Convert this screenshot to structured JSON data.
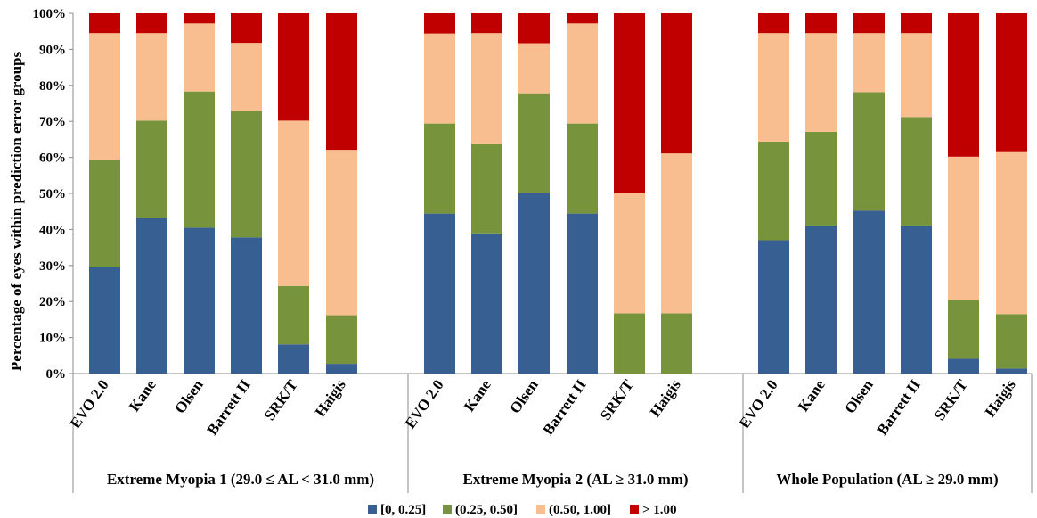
{
  "chart_data": {
    "type": "bar",
    "stacked": true,
    "ylabel": "Percentage of eyes within prediction error groups",
    "ylim": [
      0,
      100
    ],
    "yticks": [
      "0%",
      "10%",
      "20%",
      "30%",
      "40%",
      "50%",
      "60%",
      "70%",
      "80%",
      "90%",
      "100%"
    ],
    "grid": false,
    "legend_position": "bottom",
    "colors": {
      "[0, 0.25]": "#375f92",
      "(0.25, 0.50]": "#77933c",
      "(0.50, 1.00]": "#f9be8f",
      "> 1.00": "#c00000"
    },
    "groups": [
      {
        "label": "Extreme Myopia 1 (29.0 ≤ AL < 31.0 mm)",
        "categories": [
          "EVO 2.0",
          "Kane",
          "Olsen",
          "Barrett II",
          "SRK/T",
          "Haigis"
        ],
        "series": [
          {
            "name": "[0, 0.25]",
            "values": [
              29.7,
              43.2,
              40.5,
              37.8,
              8.1,
              2.7
            ]
          },
          {
            "name": "(0.25, 0.50]",
            "values": [
              29.7,
              27.0,
              37.8,
              35.1,
              16.2,
              13.5
            ]
          },
          {
            "name": "(0.50, 1.00]",
            "values": [
              35.1,
              24.3,
              18.9,
              18.9,
              45.9,
              45.9
            ]
          },
          {
            "name": "> 1.00",
            "values": [
              5.5,
              5.5,
              2.8,
              8.2,
              29.8,
              37.9
            ]
          }
        ]
      },
      {
        "label": "Extreme Myopia 2 (AL ≥ 31.0 mm)",
        "categories": [
          "EVO 2.0",
          "Kane",
          "Olsen",
          "Barrett II",
          "SRK/T",
          "Haigis"
        ],
        "series": [
          {
            "name": "[0, 0.25]",
            "values": [
              44.4,
              38.9,
              50.0,
              44.4,
              0.0,
              0.0
            ]
          },
          {
            "name": "(0.25, 0.50]",
            "values": [
              25.0,
              25.0,
              27.8,
              25.0,
              16.7,
              16.7
            ]
          },
          {
            "name": "(0.50, 1.00]",
            "values": [
              25.0,
              30.6,
              13.9,
              27.8,
              33.3,
              44.4
            ]
          },
          {
            "name": "> 1.00",
            "values": [
              5.6,
              5.5,
              8.3,
              2.8,
              50.0,
              38.9
            ]
          }
        ]
      },
      {
        "label": "Whole Population (AL ≥ 29.0 mm)",
        "categories": [
          "EVO 2.0",
          "Kane",
          "Olsen",
          "Barrett II",
          "SRK/T",
          "Haigis"
        ],
        "series": [
          {
            "name": "[0, 0.25]",
            "values": [
              37.0,
              41.1,
              45.2,
              41.1,
              4.1,
              1.4
            ]
          },
          {
            "name": "(0.25, 0.50]",
            "values": [
              27.4,
              26.0,
              32.9,
              30.1,
              16.4,
              15.1
            ]
          },
          {
            "name": "(0.50, 1.00]",
            "values": [
              30.1,
              27.4,
              16.4,
              23.3,
              39.7,
              45.2
            ]
          },
          {
            "name": "> 1.00",
            "values": [
              5.5,
              5.5,
              5.5,
              5.5,
              39.8,
              38.3
            ]
          }
        ]
      }
    ]
  }
}
